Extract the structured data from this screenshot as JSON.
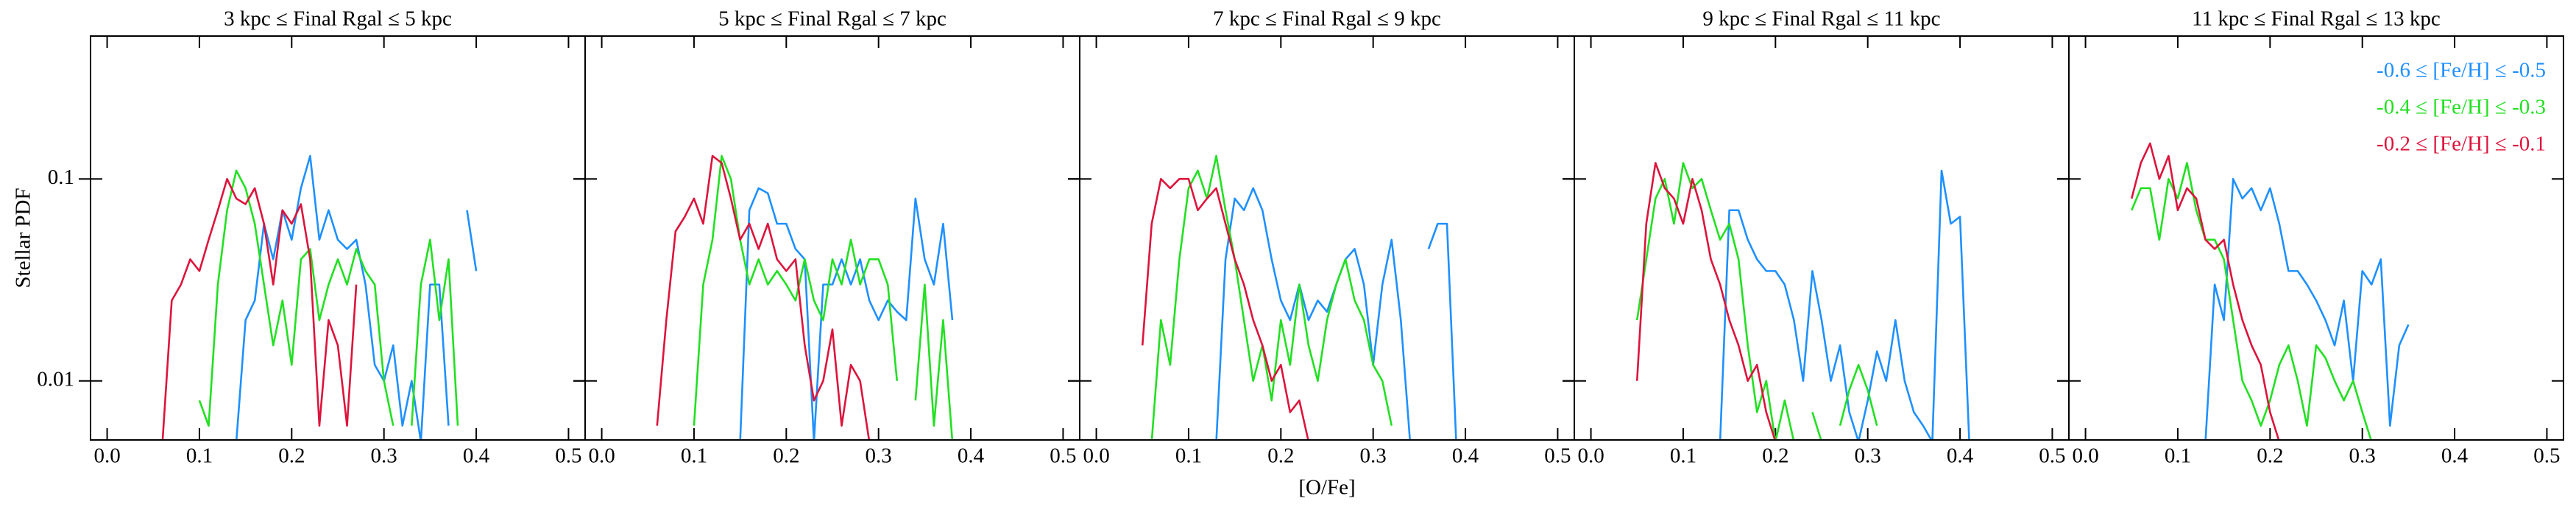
{
  "chart_data": [
    {
      "type": "line",
      "title": "3 kpc ≤ Final Rgal ≤ 5 kpc",
      "ylabel": "Stellar PDF",
      "log_y": true,
      "xlim": [
        -0.018,
        0.518
      ],
      "ylim": [
        0.0051,
        0.51
      ],
      "xticks": [
        {
          "value": 0,
          "label": "0.0"
        },
        {
          "value": 0.1,
          "label": "0.1"
        },
        {
          "value": 0.2,
          "label": "0.2"
        },
        {
          "value": 0.3,
          "label": "0.3"
        },
        {
          "value": 0.4,
          "label": "0.4"
        },
        {
          "value": 0.5,
          "label": "0.5"
        }
      ],
      "yticks": [
        0.01,
        0.1
      ],
      "x": [
        0.05,
        0.06,
        0.07,
        0.08,
        0.09,
        0.1,
        0.11,
        0.12,
        0.13,
        0.14,
        0.15,
        0.16,
        0.17,
        0.18,
        0.19,
        0.2,
        0.21,
        0.22,
        0.23,
        0.24,
        0.25,
        0.26,
        0.27,
        0.28,
        0.29,
        0.3,
        0.31,
        0.32,
        0.33,
        0.34,
        0.35,
        0.36,
        0.37,
        0.38,
        0.39,
        0.4,
        0.41
      ],
      "series": [
        {
          "color": "#1e90ff",
          "values": [
            null,
            null,
            null,
            null,
            null,
            null,
            null,
            null,
            null,
            0.005,
            0.02,
            0.025,
            0.06,
            0.04,
            0.07,
            0.05,
            0.09,
            0.13,
            0.05,
            0.07,
            0.05,
            0.045,
            0.05,
            0.03,
            0.012,
            0.01,
            0.015,
            0.006,
            0.01,
            0.005,
            0.03,
            0.03,
            0.006,
            null,
            0.07,
            0.035,
            null
          ]
        },
        {
          "color": "#22e022",
          "values": [
            null,
            null,
            null,
            null,
            null,
            0.008,
            0.006,
            0.03,
            0.07,
            0.11,
            0.09,
            0.06,
            0.03,
            0.015,
            0.025,
            0.012,
            0.04,
            0.045,
            0.02,
            0.03,
            0.04,
            0.03,
            0.045,
            0.035,
            0.03,
            0.01,
            0.006,
            null,
            0.006,
            0.03,
            0.05,
            0.02,
            0.04,
            0.006,
            null,
            null,
            null
          ]
        },
        {
          "color": "#dc143c",
          "values": [
            null,
            0.005,
            0.025,
            0.03,
            0.04,
            0.035,
            0.05,
            0.07,
            0.1,
            0.08,
            0.075,
            0.09,
            0.06,
            0.03,
            0.07,
            0.06,
            0.075,
            0.04,
            0.006,
            0.02,
            0.015,
            0.006,
            0.03,
            null,
            null,
            null,
            null,
            null,
            null,
            null,
            null,
            null,
            null,
            null,
            null,
            null,
            null
          ]
        }
      ]
    },
    {
      "type": "line",
      "title": "5 kpc ≤ Final Rgal ≤ 7 kpc",
      "log_y": true,
      "xlim": [
        -0.018,
        0.518
      ],
      "ylim": [
        0.0051,
        0.51
      ],
      "xticks": [
        {
          "value": 0,
          "label": "0.0"
        },
        {
          "value": 0.1,
          "label": "0.1"
        },
        {
          "value": 0.2,
          "label": "0.2"
        },
        {
          "value": 0.3,
          "label": "0.3"
        },
        {
          "value": 0.4,
          "label": "0.4"
        },
        {
          "value": 0.5,
          "label": "0.5"
        }
      ],
      "yticks": [
        0.01,
        0.1
      ],
      "x": [
        0.05,
        0.06,
        0.07,
        0.08,
        0.09,
        0.1,
        0.11,
        0.12,
        0.13,
        0.14,
        0.15,
        0.16,
        0.17,
        0.18,
        0.19,
        0.2,
        0.21,
        0.22,
        0.23,
        0.24,
        0.25,
        0.26,
        0.27,
        0.28,
        0.29,
        0.3,
        0.31,
        0.32,
        0.33,
        0.34,
        0.35,
        0.36,
        0.37,
        0.38,
        0.39,
        0.4,
        0.41
      ],
      "series": [
        {
          "color": "#1e90ff",
          "values": [
            null,
            null,
            null,
            null,
            null,
            null,
            null,
            null,
            null,
            null,
            0.005,
            0.07,
            0.09,
            0.085,
            0.06,
            0.06,
            0.045,
            0.04,
            0.005,
            0.03,
            0.03,
            0.04,
            0.03,
            0.04,
            0.025,
            0.02,
            0.025,
            0.022,
            0.02,
            0.08,
            0.04,
            0.03,
            0.06,
            0.02,
            null,
            0.05,
            null
          ]
        },
        {
          "color": "#22e022",
          "values": [
            null,
            null,
            null,
            null,
            null,
            0.006,
            0.03,
            0.05,
            0.13,
            0.1,
            0.05,
            0.03,
            0.04,
            0.03,
            0.035,
            0.03,
            0.025,
            0.04,
            0.025,
            0.02,
            0.04,
            0.03,
            0.05,
            0.03,
            0.04,
            0.04,
            0.03,
            0.01,
            null,
            0.008,
            0.03,
            0.006,
            0.02,
            0.005,
            null,
            null,
            null
          ]
        },
        {
          "color": "#dc143c",
          "values": [
            null,
            0.006,
            0.02,
            0.055,
            0.065,
            0.08,
            0.06,
            0.13,
            0.12,
            0.08,
            0.05,
            0.06,
            0.045,
            0.06,
            0.04,
            0.035,
            0.04,
            0.015,
            0.008,
            0.01,
            0.018,
            0.006,
            0.012,
            0.01,
            0.005,
            null,
            null,
            null,
            null,
            null,
            null,
            null,
            null,
            null,
            null,
            null,
            null
          ]
        }
      ]
    },
    {
      "type": "line",
      "title": "7 kpc ≤ Final Rgal ≤ 9 kpc",
      "xlabel": "[O/Fe]",
      "log_y": true,
      "xlim": [
        -0.018,
        0.518
      ],
      "ylim": [
        0.0051,
        0.51
      ],
      "xticks": [
        {
          "value": 0,
          "label": "0.0"
        },
        {
          "value": 0.1,
          "label": "0.1"
        },
        {
          "value": 0.2,
          "label": "0.2"
        },
        {
          "value": 0.3,
          "label": "0.3"
        },
        {
          "value": 0.4,
          "label": "0.4"
        },
        {
          "value": 0.5,
          "label": "0.5"
        }
      ],
      "yticks": [
        0.01,
        0.1
      ],
      "x": [
        0.05,
        0.06,
        0.07,
        0.08,
        0.09,
        0.1,
        0.11,
        0.12,
        0.13,
        0.14,
        0.15,
        0.16,
        0.17,
        0.18,
        0.19,
        0.2,
        0.21,
        0.22,
        0.23,
        0.24,
        0.25,
        0.26,
        0.27,
        0.28,
        0.29,
        0.3,
        0.31,
        0.32,
        0.33,
        0.34,
        0.35,
        0.36,
        0.37,
        0.38,
        0.39,
        0.4,
        0.41
      ],
      "series": [
        {
          "color": "#1e90ff",
          "values": [
            null,
            null,
            null,
            null,
            null,
            null,
            null,
            null,
            0.005,
            0.04,
            0.08,
            0.07,
            0.09,
            0.07,
            0.04,
            0.025,
            0.02,
            0.03,
            0.02,
            0.025,
            0.022,
            0.03,
            0.04,
            0.045,
            0.03,
            0.012,
            0.03,
            0.05,
            0.02,
            0.005,
            null,
            0.045,
            0.06,
            0.06,
            0.005,
            null,
            null
          ]
        },
        {
          "color": "#22e022",
          "values": [
            null,
            0.005,
            0.02,
            0.012,
            0.04,
            0.09,
            0.11,
            0.08,
            0.13,
            0.07,
            0.04,
            0.02,
            0.01,
            0.015,
            0.008,
            0.02,
            0.012,
            0.03,
            0.015,
            0.01,
            0.02,
            0.03,
            0.04,
            0.025,
            0.02,
            0.012,
            0.01,
            0.006,
            null,
            null,
            null,
            null,
            null,
            null,
            null,
            null,
            null
          ]
        },
        {
          "color": "#dc143c",
          "values": [
            0.015,
            0.06,
            0.1,
            0.09,
            0.1,
            0.1,
            0.07,
            0.08,
            0.09,
            0.06,
            0.04,
            0.03,
            0.02,
            0.015,
            0.01,
            0.012,
            0.007,
            0.008,
            0.005,
            null,
            null,
            null,
            null,
            null,
            null,
            null,
            null,
            null,
            null,
            null,
            null,
            null,
            null,
            null,
            null,
            null,
            null
          ]
        }
      ]
    },
    {
      "type": "line",
      "title": "9 kpc ≤ Final Rgal ≤ 11 kpc",
      "log_y": true,
      "xlim": [
        -0.018,
        0.518
      ],
      "ylim": [
        0.0051,
        0.51
      ],
      "xticks": [
        {
          "value": 0,
          "label": "0.0"
        },
        {
          "value": 0.1,
          "label": "0.1"
        },
        {
          "value": 0.2,
          "label": "0.2"
        },
        {
          "value": 0.3,
          "label": "0.3"
        },
        {
          "value": 0.4,
          "label": "0.4"
        },
        {
          "value": 0.5,
          "label": "0.5"
        }
      ],
      "yticks": [
        0.01,
        0.1
      ],
      "x": [
        0.05,
        0.06,
        0.07,
        0.08,
        0.09,
        0.1,
        0.11,
        0.12,
        0.13,
        0.14,
        0.15,
        0.16,
        0.17,
        0.18,
        0.19,
        0.2,
        0.21,
        0.22,
        0.23,
        0.24,
        0.25,
        0.26,
        0.27,
        0.28,
        0.29,
        0.3,
        0.31,
        0.32,
        0.33,
        0.34,
        0.35,
        0.36,
        0.37,
        0.38,
        0.39,
        0.4,
        0.41
      ],
      "series": [
        {
          "color": "#1e90ff",
          "values": [
            null,
            null,
            null,
            null,
            null,
            null,
            null,
            null,
            null,
            0.005,
            0.07,
            0.07,
            0.05,
            0.04,
            0.035,
            0.035,
            0.03,
            0.02,
            0.01,
            0.035,
            0.02,
            0.01,
            0.015,
            0.007,
            0.005,
            0.008,
            0.014,
            0.01,
            0.02,
            0.01,
            0.007,
            0.006,
            0.005,
            0.11,
            0.06,
            0.065,
            0.005
          ]
        },
        {
          "color": "#22e022",
          "values": [
            0.02,
            0.04,
            0.08,
            0.1,
            0.06,
            0.12,
            0.09,
            0.1,
            0.07,
            0.05,
            0.06,
            0.04,
            0.015,
            0.007,
            0.01,
            0.005,
            0.008,
            0.005,
            null,
            0.007,
            0.005,
            null,
            0.006,
            0.009,
            0.012,
            0.009,
            0.006,
            null,
            null,
            null,
            null,
            null,
            null,
            null,
            null,
            null,
            null
          ]
        },
        {
          "color": "#dc143c",
          "values": [
            0.01,
            0.06,
            0.12,
            0.09,
            0.08,
            0.06,
            0.1,
            0.07,
            0.04,
            0.03,
            0.02,
            0.015,
            0.01,
            0.012,
            0.007,
            0.005,
            null,
            null,
            null,
            null,
            null,
            null,
            null,
            null,
            null,
            null,
            null,
            null,
            null,
            null,
            null,
            null,
            null,
            null,
            null,
            null,
            null
          ]
        }
      ]
    },
    {
      "type": "line",
      "title": "11 kpc ≤ Final Rgal ≤ 13 kpc",
      "log_y": true,
      "legend": "upper right",
      "xlim": [
        -0.018,
        0.518
      ],
      "ylim": [
        0.0051,
        0.51
      ],
      "xticks": [
        {
          "value": 0,
          "label": "0.0"
        },
        {
          "value": 0.1,
          "label": "0.1"
        },
        {
          "value": 0.2,
          "label": "0.2"
        },
        {
          "value": 0.3,
          "label": "0.3"
        },
        {
          "value": 0.4,
          "label": "0.4"
        },
        {
          "value": 0.5,
          "label": "0.5"
        }
      ],
      "yticks": [
        0.01,
        0.1
      ],
      "x": [
        0.05,
        0.06,
        0.07,
        0.08,
        0.09,
        0.1,
        0.11,
        0.12,
        0.13,
        0.14,
        0.15,
        0.16,
        0.17,
        0.18,
        0.19,
        0.2,
        0.21,
        0.22,
        0.23,
        0.24,
        0.25,
        0.26,
        0.27,
        0.28,
        0.29,
        0.3,
        0.31,
        0.32,
        0.33,
        0.34,
        0.35,
        0.36,
        0.37,
        0.38,
        0.39,
        0.4,
        0.41
      ],
      "series": [
        {
          "name": "-0.6 ≤ [Fe/H] ≤ -0.5",
          "color": "#1e90ff",
          "values": [
            null,
            null,
            null,
            null,
            null,
            null,
            null,
            null,
            0.005,
            0.03,
            0.02,
            0.1,
            0.08,
            0.09,
            0.07,
            0.09,
            0.06,
            0.035,
            0.035,
            0.03,
            0.025,
            0.02,
            0.015,
            0.025,
            0.01,
            0.035,
            0.03,
            0.04,
            0.006,
            0.015,
            0.019,
            null,
            null,
            null,
            null,
            null,
            null
          ]
        },
        {
          "name": "-0.4 ≤ [Fe/H] ≤ -0.3",
          "color": "#22e022",
          "values": [
            0.07,
            0.09,
            0.09,
            0.05,
            0.1,
            0.08,
            0.12,
            0.07,
            0.05,
            0.05,
            0.04,
            0.02,
            0.01,
            0.008,
            0.006,
            0.008,
            0.012,
            0.015,
            0.01,
            0.006,
            0.015,
            0.013,
            0.01,
            0.008,
            0.01,
            0.007,
            0.005,
            null,
            null,
            null,
            null,
            null,
            null,
            null,
            null,
            null,
            null
          ]
        },
        {
          "name": "-0.2 ≤ [Fe/H] ≤ -0.1",
          "color": "#dc143c",
          "values": [
            0.08,
            0.12,
            0.15,
            0.1,
            0.13,
            0.07,
            0.09,
            0.08,
            0.05,
            0.045,
            0.05,
            0.03,
            0.02,
            0.015,
            0.012,
            0.007,
            0.005,
            null,
            null,
            null,
            null,
            null,
            null,
            null,
            null,
            null,
            null,
            null,
            null,
            null,
            null,
            null,
            null,
            null,
            null,
            null,
            null
          ]
        }
      ]
    }
  ]
}
